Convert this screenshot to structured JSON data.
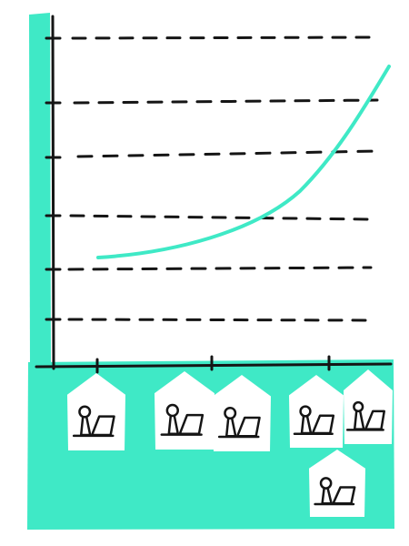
{
  "colors": {
    "background": "#ffffff",
    "accent": "#3fe9c6",
    "ink": "#151515",
    "house_fill": "#ffffff"
  },
  "chart": {
    "type": "line",
    "gridline_count": 6,
    "x_tick_count": 3,
    "curve": "rising-exponential"
  },
  "houses": {
    "count": 6,
    "icon": "person-with-laptop-icon"
  }
}
